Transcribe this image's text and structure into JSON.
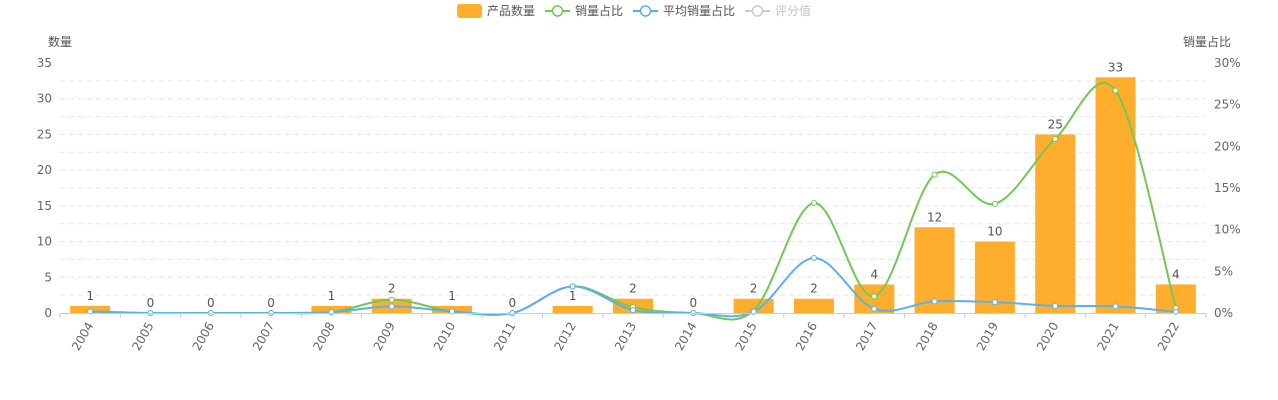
{
  "chart_data": {
    "type": "bar",
    "categories": [
      "2004",
      "2005",
      "2006",
      "2007",
      "2008",
      "2009",
      "2010",
      "2011",
      "2012",
      "2013",
      "2014",
      "2015",
      "2016",
      "2017",
      "2018",
      "2019",
      "2020",
      "2021",
      "2022"
    ],
    "legend": [
      {
        "name": "产品数量",
        "kind": "bar",
        "color": "#ffad2d",
        "active": true
      },
      {
        "name": "销量占比",
        "kind": "line",
        "color": "#72c756",
        "active": true
      },
      {
        "name": "平均销量占比",
        "kind": "line",
        "color": "#5bb0ea",
        "active": true
      },
      {
        "name": "评分值",
        "kind": "line",
        "color": "#cccccc",
        "active": false
      }
    ],
    "y_left": {
      "name": "数量",
      "min": 0,
      "max": 35,
      "interval": 5,
      "ticks": [
        "0",
        "5",
        "10",
        "15",
        "20",
        "25",
        "30",
        "35"
      ]
    },
    "y_right": {
      "name": "销量占比",
      "min": 0,
      "max": 30,
      "ticks": [
        "0%",
        "5%",
        "10%",
        "15%",
        "20%",
        "25%",
        "30%"
      ]
    },
    "series": [
      {
        "name": "产品数量",
        "type": "bar",
        "axis": "left",
        "color": "#ffad2d",
        "values": [
          1,
          0,
          0,
          0,
          1,
          2,
          1,
          0,
          1,
          2,
          0,
          2,
          2,
          4,
          12,
          10,
          25,
          33,
          4
        ],
        "labels": [
          "1",
          "0",
          "0",
          "0",
          "1",
          "2",
          "1",
          "0",
          "1",
          "2",
          "0",
          "2",
          "2",
          "4",
          "12",
          "10",
          "25",
          "33",
          "4"
        ]
      },
      {
        "name": "销量占比",
        "type": "line",
        "axis": "right",
        "color": "#72c756",
        "values": [
          0.2,
          0,
          0,
          0,
          0.1,
          1.6,
          0.2,
          0,
          3.2,
          0.7,
          0,
          0.3,
          13.2,
          2.0,
          16.6,
          13.1,
          20.9,
          26.7,
          0.6
        ]
      },
      {
        "name": "平均销量占比",
        "type": "line",
        "axis": "right",
        "color": "#5bb0ea",
        "values": [
          0.2,
          0,
          0,
          0,
          0.1,
          0.8,
          0.2,
          0,
          3.2,
          0.35,
          0,
          0.15,
          6.6,
          0.5,
          1.4,
          1.3,
          0.85,
          0.8,
          0.15
        ]
      }
    ],
    "grid": "horizontal-dashed",
    "legend_position": "top-center"
  }
}
